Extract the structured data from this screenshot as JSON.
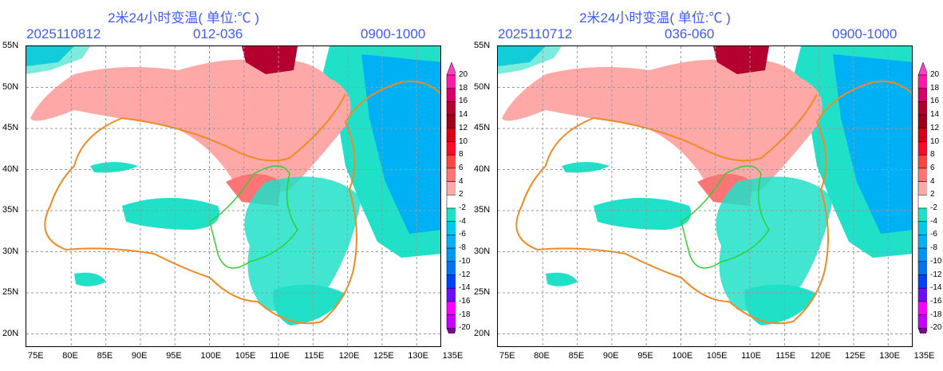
{
  "panels": [
    {
      "title": "2米24小时变温( 单位:℃ )",
      "init_time": "2025110812",
      "forecast_range": "012-036",
      "time_window": "0900-1000"
    },
    {
      "title": "2米24小时变温( 单位:℃ )",
      "init_time": "2025110712",
      "forecast_range": "036-060",
      "time_window": "0900-1000"
    }
  ],
  "lat_labels": [
    "55N",
    "50N",
    "45N",
    "40N",
    "35N",
    "30N",
    "25N",
    "20N"
  ],
  "lon_labels": [
    "75E",
    "80E",
    "85E",
    "90E",
    "95E",
    "100E",
    "105E",
    "110E",
    "115E",
    "120E",
    "125E",
    "130E",
    "135E"
  ],
  "colorbar": {
    "labels": [
      "20",
      "18",
      "16",
      "14",
      "12",
      "10",
      "8",
      "6",
      "4",
      "2",
      "-2",
      "-4",
      "-6",
      "-8",
      "-10",
      "-12",
      "-14",
      "-16",
      "-18",
      "-20"
    ],
    "colors": [
      "#ff1aa8",
      "#d4006a",
      "#b4002e",
      "#a0001a",
      "#d80018",
      "#ff0a28",
      "#ff4444",
      "#ff7474",
      "#ffa8a8",
      "#ffffff",
      "#20e0c8",
      "#00c8ec",
      "#00b0f4",
      "#0094f4",
      "#0074f0",
      "#0040ff",
      "#6a10ff",
      "#ff00ff",
      "#c400ff"
    ],
    "top_arrow": "#ff40c8",
    "bottom_arrow": "#800090"
  }
}
